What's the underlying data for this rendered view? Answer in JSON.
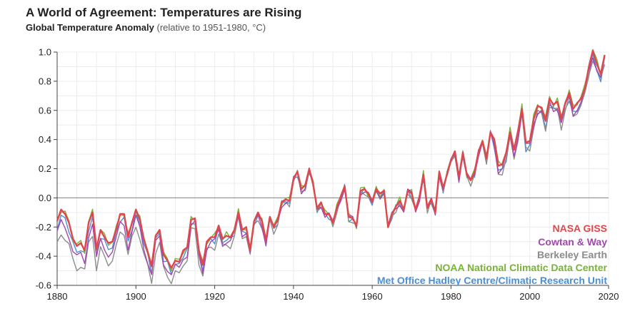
{
  "chart_data": {
    "type": "line",
    "title": "A World of Agreement: Temperatures are Rising",
    "subtitle_bold": "Global Temperature Anomaly",
    "subtitle_rest": "(relative to 1951-1980, °C)",
    "xlim": [
      1880,
      2020
    ],
    "ylim": [
      -0.6,
      1.0
    ],
    "xticks": [
      1880,
      1900,
      1920,
      1940,
      1960,
      1980,
      2000,
      2020
    ],
    "yticks": [
      -0.6,
      -0.4,
      -0.2,
      0.0,
      0.2,
      0.4,
      0.6,
      0.8,
      1.0
    ],
    "xtick_labels": [
      "1880",
      "1900",
      "1920",
      "1940",
      "1960",
      "1980",
      "2000",
      "2020"
    ],
    "ytick_labels": [
      "-0.6",
      "-0.4",
      "-0.2",
      "0.0",
      "0.2",
      "0.4",
      "0.6",
      "0.8",
      "1.0"
    ],
    "grid": true,
    "legend_position": "bottom-right",
    "years_start": 1880,
    "years_end": 2019,
    "giss": [
      -0.16,
      -0.08,
      -0.11,
      -0.17,
      -0.28,
      -0.33,
      -0.31,
      -0.36,
      -0.17,
      -0.1,
      -0.35,
      -0.22,
      -0.27,
      -0.31,
      -0.3,
      -0.22,
      -0.11,
      -0.11,
      -0.27,
      -0.17,
      -0.08,
      -0.15,
      -0.28,
      -0.37,
      -0.47,
      -0.26,
      -0.22,
      -0.39,
      -0.43,
      -0.48,
      -0.43,
      -0.44,
      -0.36,
      -0.34,
      -0.15,
      -0.14,
      -0.36,
      -0.46,
      -0.3,
      -0.27,
      -0.27,
      -0.19,
      -0.28,
      -0.26,
      -0.27,
      -0.22,
      -0.1,
      -0.22,
      -0.2,
      -0.36,
      -0.16,
      -0.1,
      -0.16,
      -0.29,
      -0.13,
      -0.2,
      -0.15,
      -0.03,
      -0.01,
      -0.02,
      0.13,
      0.18,
      0.06,
      0.09,
      0.2,
      0.09,
      -0.07,
      -0.03,
      -0.11,
      -0.11,
      -0.17,
      -0.07,
      0.01,
      0.08,
      -0.13,
      -0.14,
      -0.19,
      0.05,
      0.06,
      0.03,
      -0.03,
      0.06,
      0.03,
      0.05,
      -0.2,
      -0.11,
      -0.06,
      -0.02,
      -0.08,
      0.05,
      0.03,
      -0.08,
      0.01,
      0.16,
      -0.07,
      -0.01,
      -0.1,
      0.18,
      0.07,
      0.16,
      0.26,
      0.32,
      0.14,
      0.31,
      0.16,
      0.12,
      0.18,
      0.32,
      0.39,
      0.27,
      0.45,
      0.4,
      0.22,
      0.23,
      0.31,
      0.45,
      0.33,
      0.46,
      0.61,
      0.38,
      0.39,
      0.54,
      0.63,
      0.62,
      0.53,
      0.68,
      0.64,
      0.66,
      0.54,
      0.65,
      0.72,
      0.61,
      0.65,
      0.68,
      0.75,
      0.9,
      1.01,
      0.92,
      0.85,
      0.98
    ],
    "series_names": [
      "NASA GISS",
      "Cowtan & Way",
      "Berkeley Earth",
      "NOAA National Climatic Data Center",
      "Met Office Hadley Centre/Climatic Research Unit"
    ],
    "series_colors": [
      "#e0474c",
      "#a347b0",
      "#8c8c8c",
      "#7ab238",
      "#4a8fd6"
    ],
    "series_offsets": [
      0,
      -0.03,
      -0.05,
      0.01,
      -0.04
    ],
    "series_early_bias": [
      0,
      -0.08,
      -0.15,
      0.0,
      -0.03
    ]
  },
  "legend": {
    "items": [
      "NASA GISS",
      "Cowtan & Way",
      "Berkeley Earth",
      "NOAA National Climatic Data Center",
      "Met Office Hadley Centre/Climatic Research Unit"
    ]
  }
}
